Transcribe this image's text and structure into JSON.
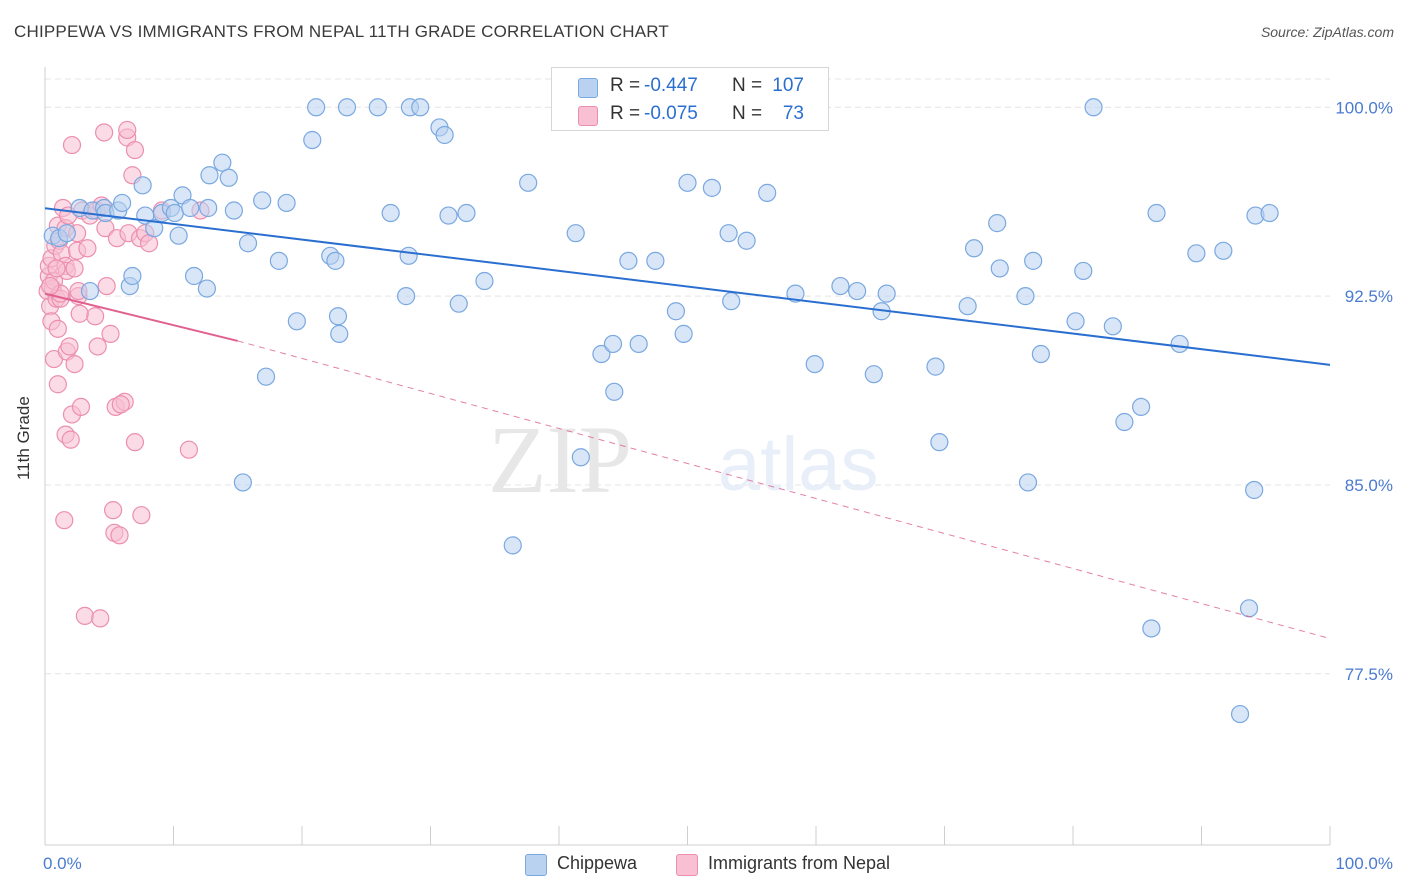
{
  "title": "CHIPPEWA VS IMMIGRANTS FROM NEPAL 11TH GRADE CORRELATION CHART",
  "source": "Source: ZipAtlas.com",
  "watermark": {
    "zip": "ZIP",
    "atlas": "atlas"
  },
  "colors": {
    "blue_fill": "#b8d2f0",
    "blue_stroke": "#7aa8e0",
    "blue_line": "#2a6fd0",
    "pink_fill": "#f8c0d2",
    "pink_stroke": "#ec8fae",
    "pink_line": "#e06090",
    "tick_text": "#4a7bd0",
    "grid": "#e4e4e4"
  },
  "stats": [
    {
      "r_label": "R =",
      "r_value": "-0.447",
      "n_label": "N =",
      "n_value": "107",
      "color": "#b8d2f0",
      "stroke": "#7aa8e0"
    },
    {
      "r_label": "R =",
      "r_value": "-0.075",
      "n_label": "N =",
      "n_value": "73",
      "color": "#f8c0d2",
      "stroke": "#ec8fae"
    }
  ],
  "legend": [
    {
      "label": "Chippewa",
      "color": "#b8d2f0",
      "stroke": "#7aa8e0"
    },
    {
      "label": "Immigrants from Nepal",
      "color": "#f8c0d2",
      "stroke": "#ec8fae"
    }
  ],
  "chart_data": {
    "type": "scatter",
    "title": "CHIPPEWA VS IMMIGRANTS FROM NEPAL 11TH GRADE CORRELATION CHART",
    "xlabel": "",
    "ylabel": "11th Grade",
    "xlim": [
      0,
      100
    ],
    "ylim": [
      70.7,
      101.6
    ],
    "x_tick_labels": [
      "0.0%",
      "100.0%"
    ],
    "y_ticks": [
      77.5,
      85.0,
      92.5,
      100.0
    ],
    "y_tick_labels": [
      "77.5%",
      "85.0%",
      "92.5%",
      "100.0%"
    ],
    "grid": true,
    "legend_position": "bottom-center",
    "series": [
      {
        "name": "Chippewa",
        "points": [
          [
            0.6,
            94.9
          ],
          [
            1.1,
            94.8
          ],
          [
            1.7,
            95.0
          ],
          [
            2.7,
            96.0
          ],
          [
            3.5,
            92.7
          ],
          [
            3.7,
            95.9
          ],
          [
            4.6,
            96.0
          ],
          [
            4.7,
            95.8
          ],
          [
            5.7,
            95.9
          ],
          [
            6.0,
            96.2
          ],
          [
            6.6,
            92.9
          ],
          [
            6.8,
            93.3
          ],
          [
            7.6,
            96.9
          ],
          [
            7.8,
            95.7
          ],
          [
            8.5,
            95.2
          ],
          [
            9.1,
            95.8
          ],
          [
            9.8,
            96.0
          ],
          [
            10.1,
            95.8
          ],
          [
            10.4,
            94.9
          ],
          [
            10.7,
            96.5
          ],
          [
            11.3,
            96.0
          ],
          [
            11.6,
            93.3
          ],
          [
            12.6,
            92.8
          ],
          [
            12.7,
            96.0
          ],
          [
            12.8,
            97.3
          ],
          [
            13.8,
            97.8
          ],
          [
            14.3,
            97.2
          ],
          [
            14.7,
            95.9
          ],
          [
            15.4,
            85.1
          ],
          [
            15.8,
            94.6
          ],
          [
            16.9,
            96.3
          ],
          [
            17.2,
            89.3
          ],
          [
            18.2,
            93.9
          ],
          [
            18.8,
            96.2
          ],
          [
            19.6,
            91.5
          ],
          [
            20.8,
            98.7
          ],
          [
            21.1,
            100.0
          ],
          [
            22.2,
            94.1
          ],
          [
            22.6,
            93.9
          ],
          [
            22.8,
            91.7
          ],
          [
            22.9,
            91.0
          ],
          [
            23.5,
            100.0
          ],
          [
            25.9,
            100.0
          ],
          [
            26.9,
            95.8
          ],
          [
            28.1,
            92.5
          ],
          [
            28.3,
            94.1
          ],
          [
            28.4,
            100.0
          ],
          [
            29.2,
            100.0
          ],
          [
            30.7,
            99.2
          ],
          [
            31.1,
            98.9
          ],
          [
            31.4,
            95.7
          ],
          [
            32.2,
            92.2
          ],
          [
            32.8,
            95.8
          ],
          [
            34.2,
            93.1
          ],
          [
            36.4,
            82.6
          ],
          [
            37.6,
            97.0
          ],
          [
            41.3,
            95.0
          ],
          [
            41.7,
            86.1
          ],
          [
            43.3,
            90.2
          ],
          [
            44.2,
            90.6
          ],
          [
            44.3,
            88.7
          ],
          [
            45.4,
            93.9
          ],
          [
            46.2,
            90.6
          ],
          [
            47.5,
            93.9
          ],
          [
            49.1,
            91.9
          ],
          [
            49.7,
            91.0
          ],
          [
            50.0,
            97.0
          ],
          [
            51.9,
            96.8
          ],
          [
            53.2,
            95.0
          ],
          [
            53.4,
            92.3
          ],
          [
            54.6,
            94.7
          ],
          [
            56.2,
            96.6
          ],
          [
            58.4,
            92.6
          ],
          [
            59.9,
            89.8
          ],
          [
            61.9,
            92.9
          ],
          [
            63.2,
            92.7
          ],
          [
            64.5,
            89.4
          ],
          [
            65.1,
            91.9
          ],
          [
            65.5,
            92.6
          ],
          [
            69.3,
            89.7
          ],
          [
            69.6,
            86.7
          ],
          [
            71.8,
            92.1
          ],
          [
            72.3,
            94.4
          ],
          [
            74.1,
            95.4
          ],
          [
            74.3,
            93.6
          ],
          [
            76.3,
            92.5
          ],
          [
            76.5,
            85.1
          ],
          [
            76.9,
            93.9
          ],
          [
            77.5,
            90.2
          ],
          [
            80.2,
            91.5
          ],
          [
            80.8,
            93.5
          ],
          [
            81.6,
            100.0
          ],
          [
            83.1,
            91.3
          ],
          [
            84.0,
            87.5
          ],
          [
            85.3,
            88.1
          ],
          [
            86.1,
            79.3
          ],
          [
            86.5,
            95.8
          ],
          [
            88.3,
            90.6
          ],
          [
            89.6,
            94.2
          ],
          [
            91.7,
            94.3
          ],
          [
            93.0,
            75.9
          ],
          [
            93.7,
            80.1
          ],
          [
            94.1,
            84.8
          ],
          [
            94.2,
            95.7
          ],
          [
            95.3,
            95.8
          ]
        ]
      },
      {
        "name": "Immigrants from Nepal",
        "points": [
          [
            0.2,
            92.7
          ],
          [
            0.3,
            93.3
          ],
          [
            0.3,
            93.7
          ],
          [
            0.4,
            92.1
          ],
          [
            0.5,
            91.5
          ],
          [
            0.5,
            94.0
          ],
          [
            0.6,
            92.8
          ],
          [
            0.7,
            93.1
          ],
          [
            0.7,
            90.0
          ],
          [
            0.8,
            94.5
          ],
          [
            0.9,
            92.4
          ],
          [
            1.0,
            95.3
          ],
          [
            1.0,
            91.2
          ],
          [
            1.0,
            89.0
          ],
          [
            1.1,
            94.7
          ],
          [
            1.2,
            92.4
          ],
          [
            1.2,
            92.6
          ],
          [
            1.3,
            94.2
          ],
          [
            1.4,
            96.0
          ],
          [
            1.6,
            95.2
          ],
          [
            1.6,
            87.0
          ],
          [
            1.6,
            93.7
          ],
          [
            1.7,
            90.3
          ],
          [
            1.7,
            93.5
          ],
          [
            1.8,
            95.7
          ],
          [
            1.9,
            90.5
          ],
          [
            2.0,
            86.8
          ],
          [
            2.1,
            98.5
          ],
          [
            2.1,
            87.8
          ],
          [
            2.3,
            89.8
          ],
          [
            2.3,
            93.6
          ],
          [
            2.5,
            95.0
          ],
          [
            2.5,
            94.3
          ],
          [
            2.6,
            92.5
          ],
          [
            2.6,
            92.7
          ],
          [
            2.8,
            88.1
          ],
          [
            2.9,
            95.9
          ],
          [
            3.1,
            79.8
          ],
          [
            3.5,
            95.7
          ],
          [
            3.9,
            91.7
          ],
          [
            4.0,
            95.9
          ],
          [
            4.3,
            79.7
          ],
          [
            4.4,
            96.1
          ],
          [
            4.6,
            99.0
          ],
          [
            4.7,
            95.2
          ],
          [
            4.8,
            92.9
          ],
          [
            5.1,
            91.0
          ],
          [
            5.3,
            84.0
          ],
          [
            5.4,
            83.1
          ],
          [
            5.5,
            88.1
          ],
          [
            5.6,
            94.8
          ],
          [
            5.8,
            83.0
          ],
          [
            6.2,
            88.3
          ],
          [
            6.4,
            98.8
          ],
          [
            6.4,
            99.1
          ],
          [
            6.5,
            95.0
          ],
          [
            6.8,
            97.3
          ],
          [
            7.0,
            86.7
          ],
          [
            7.0,
            98.3
          ],
          [
            7.4,
            94.8
          ],
          [
            7.5,
            83.8
          ],
          [
            7.8,
            95.0
          ],
          [
            8.1,
            94.6
          ],
          [
            9.1,
            95.9
          ],
          [
            11.2,
            86.4
          ],
          [
            12.1,
            95.9
          ],
          [
            0.4,
            92.9
          ],
          [
            0.9,
            93.6
          ],
          [
            1.5,
            83.6
          ],
          [
            2.7,
            91.8
          ],
          [
            3.3,
            94.4
          ],
          [
            4.1,
            90.5
          ],
          [
            5.9,
            88.2
          ]
        ]
      }
    ],
    "trend_lines": [
      {
        "series": "Chippewa",
        "x": [
          0,
          100
        ],
        "y": [
          95.99,
          89.77
        ],
        "style": "solid"
      },
      {
        "series": "Immigrants from Nepal",
        "x": [
          0,
          15
        ],
        "y": [
          92.6,
          90.72
        ],
        "style": "solid"
      },
      {
        "series": "Immigrants from Nepal",
        "x": [
          15,
          100
        ],
        "y": [
          90.72,
          78.9
        ],
        "style": "dashed"
      }
    ]
  }
}
